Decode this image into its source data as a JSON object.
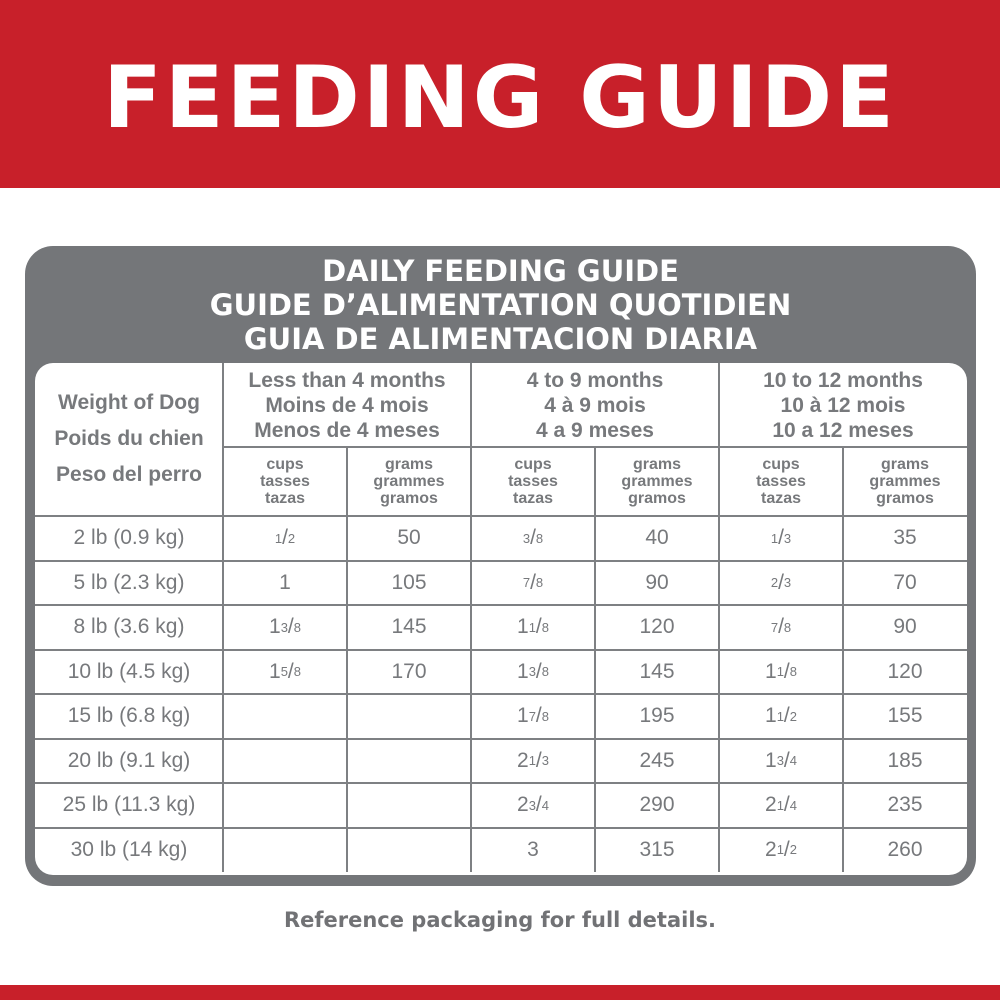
{
  "banner": {
    "title": "FEEDING GUIDE"
  },
  "card": {
    "titles": [
      "DAILY FEEDING GUIDE",
      "GUIDE D’ALIMENTATION QUOTIDIEN",
      "GUIA DE ALIMENTACION DIARIA"
    ]
  },
  "table": {
    "weight_header": [
      "Weight of Dog",
      "Poids du chien",
      "Peso del perro"
    ],
    "age_groups": [
      {
        "lines": [
          "Less than 4 months",
          "Moins de 4 mois",
          "Menos de 4 meses"
        ]
      },
      {
        "lines": [
          "4 to 9 months",
          "4 à 9 mois",
          "4 a 9 meses"
        ]
      },
      {
        "lines": [
          "10 to 12 months",
          "10 à 12 mois",
          "10 a 12 meses"
        ]
      }
    ],
    "unit_headers": {
      "cups": [
        "cups",
        "tasses",
        "tazas"
      ],
      "grams": [
        "grams",
        "grammes",
        "gramos"
      ]
    },
    "rows": [
      {
        "weight": "2 lb (0.9 kg)",
        "values": [
          "1/2",
          "50",
          "3/8",
          "40",
          "1/3",
          "35"
        ]
      },
      {
        "weight": "5 lb (2.3 kg)",
        "values": [
          "1",
          "105",
          "7/8",
          "90",
          "2/3",
          "70"
        ]
      },
      {
        "weight": "8 lb (3.6 kg)",
        "values": [
          "1 3/8",
          "145",
          "1 1/8",
          "120",
          "7/8",
          "90"
        ]
      },
      {
        "weight": "10 lb (4.5 kg)",
        "values": [
          "1 5/8",
          "170",
          "1 3/8",
          "145",
          "1 1/8",
          "120"
        ]
      },
      {
        "weight": "15 lb (6.8 kg)",
        "values": [
          "",
          "",
          "1 7/8",
          "195",
          "1 1/2",
          "155"
        ]
      },
      {
        "weight": "20 lb (9.1 kg)",
        "values": [
          "",
          "",
          "2 1/3",
          "245",
          "1 3/4",
          "185"
        ]
      },
      {
        "weight": "25 lb (11.3 kg)",
        "values": [
          "",
          "",
          "2 3/4",
          "290",
          "2 1/4",
          "235"
        ]
      },
      {
        "weight": "30 lb (14 kg)",
        "values": [
          "",
          "",
          "3",
          "315",
          "2 1/2",
          "260"
        ]
      }
    ]
  },
  "footer": {
    "note": "Reference packaging for full details."
  },
  "colors": {
    "brand_red": "#c8202a",
    "panel_gray": "#747679",
    "text_gray": "#77797c"
  }
}
